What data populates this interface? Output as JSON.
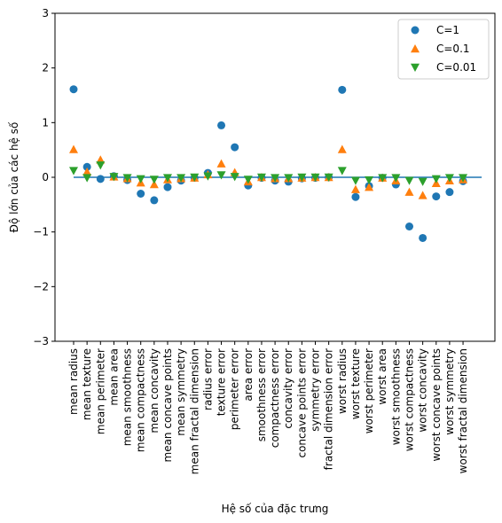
{
  "chart_data": {
    "type": "scatter",
    "title": "",
    "xlabel": "Hệ số của đặc trưng",
    "ylabel": "Độ lớn của các hệ số",
    "ylim": [
      -3,
      3
    ],
    "yticks": [
      3,
      2,
      1,
      0,
      -1,
      -2,
      -3
    ],
    "ytick_labels": [
      "3",
      "2",
      "1",
      "0",
      "−1",
      "−2",
      "−3"
    ],
    "grid": false,
    "legend_position": "top-right",
    "zero_line_color": "#1f77b4",
    "categories": [
      "mean radius",
      "mean texture",
      "mean perimeter",
      "mean area",
      "mean smoothness",
      "mean compactness",
      "mean concavity",
      "mean concave points",
      "mean symmetry",
      "mean fractal dimension",
      "radius error",
      "texture error",
      "perimeter error",
      "area error",
      "smoothness error",
      "compactness error",
      "concavity error",
      "concave points error",
      "symmetry error",
      "fractal dimension error",
      "worst radius",
      "worst texture",
      "worst perimeter",
      "worst area",
      "worst smoothness",
      "worst compactness",
      "worst concavity",
      "worst concave points",
      "worst symmetry",
      "worst fractal dimension"
    ],
    "series": [
      {
        "name": "C=1",
        "marker": "circle",
        "color": "#1f77b4",
        "values": [
          1.61,
          0.19,
          -0.03,
          0.02,
          -0.05,
          -0.3,
          -0.42,
          -0.18,
          -0.06,
          -0.01,
          0.08,
          0.95,
          0.55,
          -0.15,
          -0.01,
          -0.06,
          -0.08,
          -0.02,
          -0.01,
          -0.0,
          1.6,
          -0.36,
          -0.16,
          -0.01,
          -0.13,
          -0.9,
          -1.11,
          -0.35,
          -0.27,
          -0.07
        ]
      },
      {
        "name": "C=0.1",
        "marker": "triangle-up",
        "color": "#ff7f0e",
        "values": [
          0.51,
          0.1,
          0.32,
          0.01,
          -0.02,
          -0.1,
          -0.13,
          -0.04,
          -0.02,
          -0.01,
          0.05,
          0.25,
          0.09,
          -0.08,
          -0.0,
          -0.02,
          -0.02,
          -0.01,
          -0.0,
          -0.0,
          0.51,
          -0.22,
          -0.18,
          -0.01,
          -0.06,
          -0.27,
          -0.33,
          -0.11,
          -0.06,
          -0.04
        ]
      },
      {
        "name": "C=0.01",
        "marker": "triangle-down",
        "color": "#2ca02c",
        "values": [
          0.12,
          -0.01,
          0.22,
          0.01,
          -0.01,
          -0.03,
          -0.04,
          -0.01,
          -0.01,
          -0.0,
          0.02,
          0.04,
          0.01,
          -0.04,
          -0.0,
          -0.01,
          -0.01,
          -0.0,
          -0.0,
          -0.0,
          0.12,
          -0.06,
          -0.05,
          -0.01,
          -0.01,
          -0.06,
          -0.08,
          -0.03,
          -0.01,
          -0.01
        ]
      }
    ]
  }
}
